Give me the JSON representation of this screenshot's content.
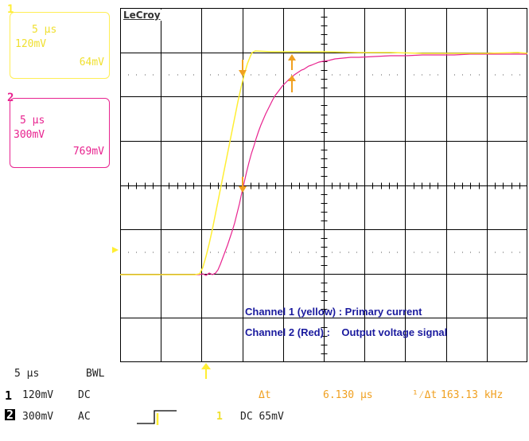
{
  "channel1": {
    "number": "1",
    "timebase": "5 µs",
    "volts_per_div": "120mV",
    "offset": "64mV",
    "color": "#ffee33",
    "coupling": "DC"
  },
  "channel2": {
    "number": "2",
    "timebase": "5 µs",
    "volts_per_div": "300mV",
    "offset": "769mV",
    "color": "#e8238f",
    "coupling": "AC"
  },
  "screen": {
    "brand": "LeCroy",
    "annotation_line1": "Channel 1 (yellow) : Primary current",
    "annotation_line2": "Channel 2 (Red) :    Output voltage signal",
    "grid_color": "#000000",
    "annotation_color": "#1a1a9e"
  },
  "status_bar": {
    "timebase": "5 µs",
    "bwl": "BWL",
    "ch1_label": "1",
    "ch1_vdiv": "120mV",
    "ch1_coupling": "DC",
    "ch2_label": "2",
    "ch2_vdiv": "300mV",
    "ch2_coupling": "AC",
    "delta_t_label": "Δt",
    "delta_t_value": "6.130 µs",
    "inv_delta_t_label": "¹⁄Δt",
    "inv_delta_t_value": "163.13 kHz",
    "trigger_source": "1",
    "trigger_setting": "DC 65mV"
  }
}
